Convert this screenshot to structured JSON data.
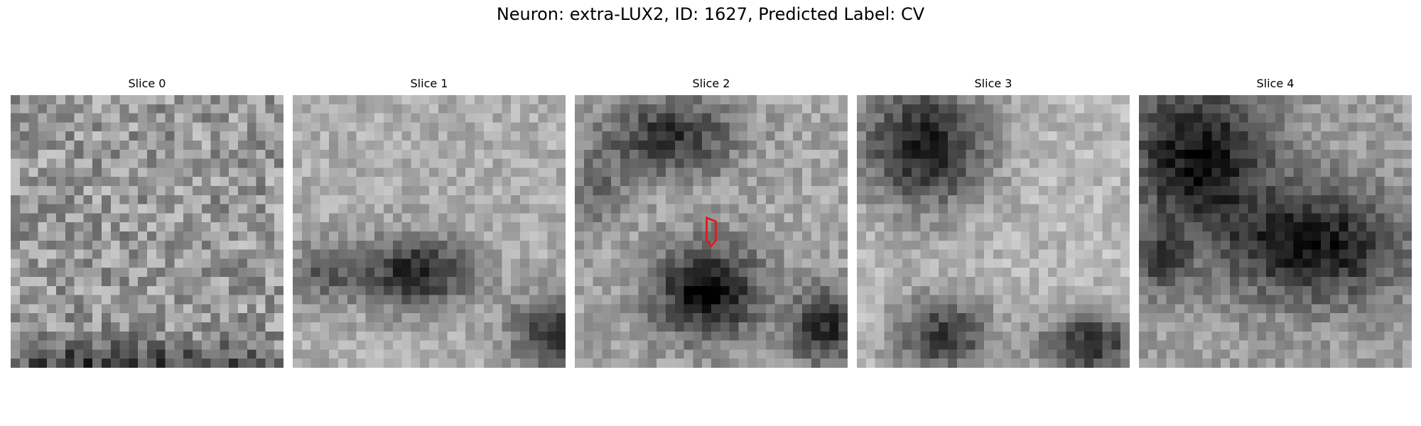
{
  "figure": {
    "title": "Neuron: extra-LUX2, ID: 1627, Predicted Label: CV"
  },
  "panels": [
    {
      "title": "Slice 0",
      "has_marker": false
    },
    {
      "title": "Slice 1",
      "has_marker": false
    },
    {
      "title": "Slice 2",
      "has_marker": true
    },
    {
      "title": "Slice 3",
      "has_marker": false
    },
    {
      "title": "Slice 4",
      "has_marker": false
    }
  ],
  "colors": {
    "marker_outline": "#e41a1c"
  }
}
